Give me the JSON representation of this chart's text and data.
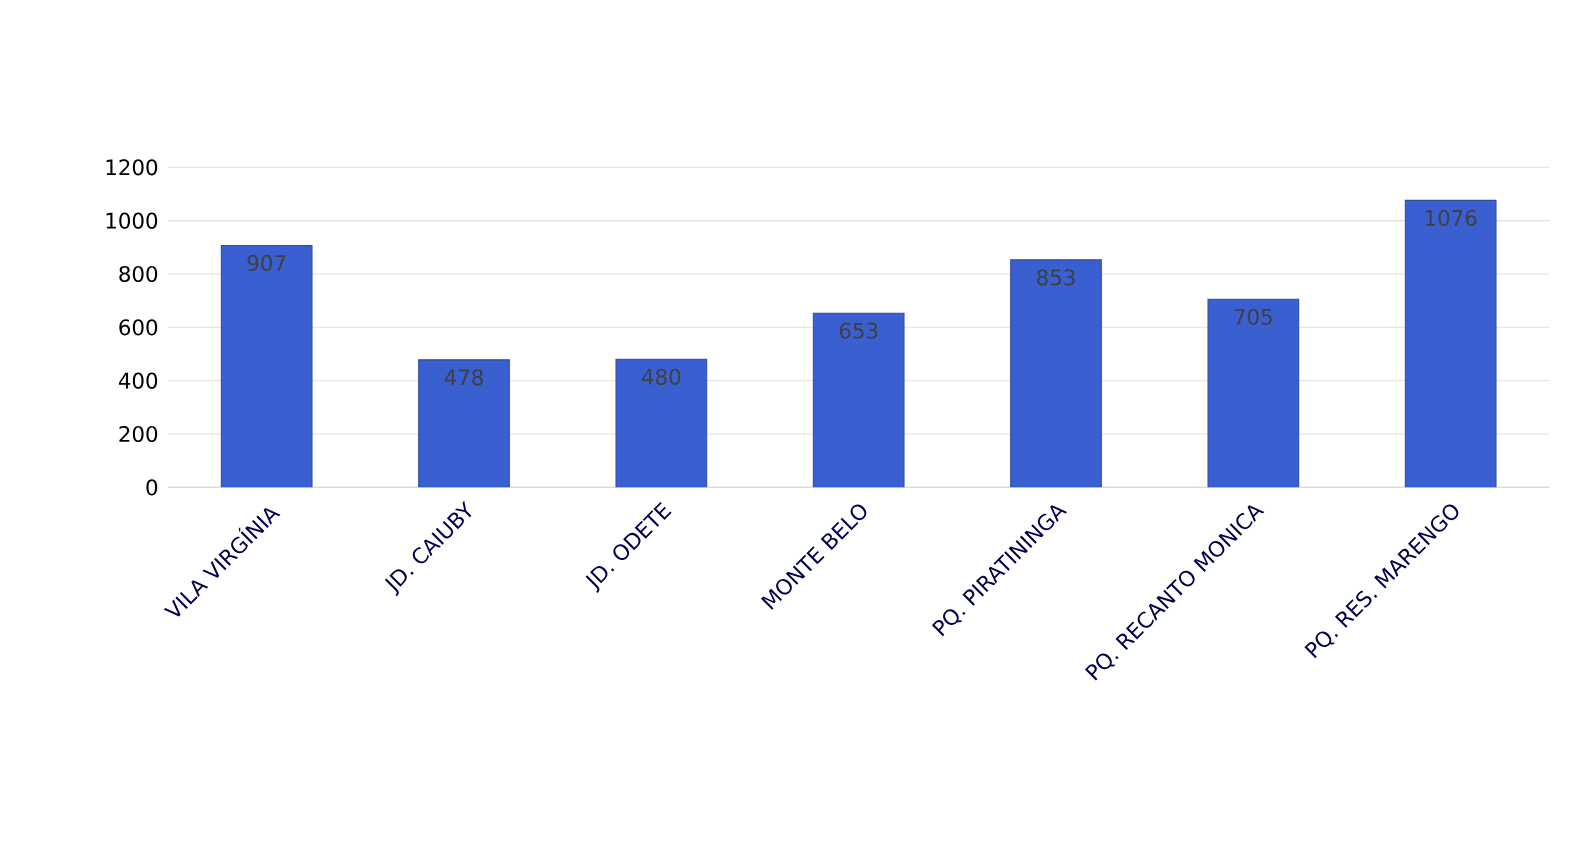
{
  "chart_data": {
    "type": "bar",
    "categories": [
      "VILA VIRGÍNIA",
      "JD. CAIUBY",
      "JD. ODETE",
      "MONTE BELO",
      "PQ. PIRATININGA",
      "PQ. RECANTO MONICA",
      "PQ. RES. MARENGO"
    ],
    "values": [
      907,
      478,
      480,
      653,
      853,
      705,
      1076
    ],
    "color": "#3a5fd0",
    "ylim": [
      0,
      1200
    ],
    "yticks": [
      0,
      200,
      400,
      600,
      800,
      1000,
      1200
    ],
    "grid": "y",
    "data_labels": true
  }
}
